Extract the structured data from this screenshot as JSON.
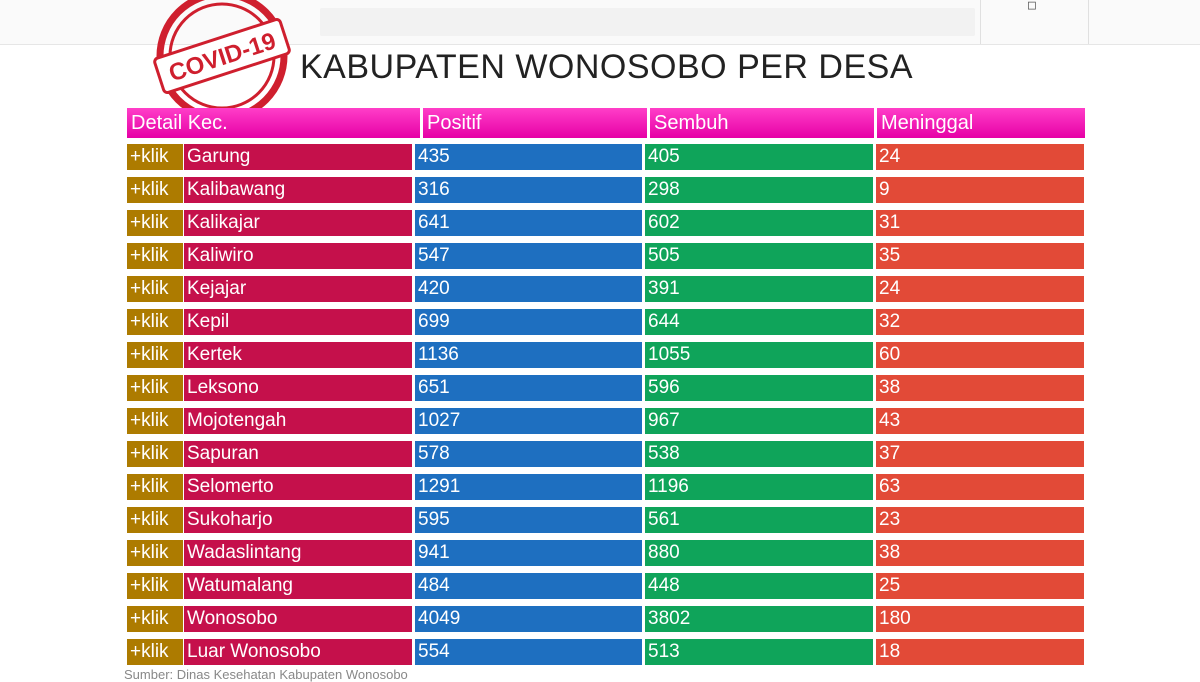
{
  "stamp": {
    "text": "COVID-19"
  },
  "page": {
    "title": "KABUPATEN WONOSOBO PER DESA"
  },
  "table": {
    "headers": [
      "Detail Kec.",
      "Positif",
      "Sembuh",
      "Meninggal"
    ],
    "link_label": "+klik",
    "rows": [
      {
        "name": "Garung",
        "positif": "435",
        "sembuh": "405",
        "meninggal": "24"
      },
      {
        "name": "Kalibawang",
        "positif": "316",
        "sembuh": "298",
        "meninggal": "9"
      },
      {
        "name": "Kalikajar",
        "positif": "641",
        "sembuh": "602",
        "meninggal": "31"
      },
      {
        "name": "Kaliwiro",
        "positif": "547",
        "sembuh": "505",
        "meninggal": "35"
      },
      {
        "name": "Kejajar",
        "positif": "420",
        "sembuh": "391",
        "meninggal": "24"
      },
      {
        "name": "Kepil",
        "positif": "699",
        "sembuh": "644",
        "meninggal": "32"
      },
      {
        "name": "Kertek",
        "positif": "1136",
        "sembuh": "1055",
        "meninggal": "60"
      },
      {
        "name": "Leksono",
        "positif": "651",
        "sembuh": "596",
        "meninggal": "38"
      },
      {
        "name": "Mojotengah",
        "positif": "1027",
        "sembuh": "967",
        "meninggal": "43"
      },
      {
        "name": "Sapuran",
        "positif": "578",
        "sembuh": "538",
        "meninggal": "37"
      },
      {
        "name": "Selomerto",
        "positif": "1291",
        "sembuh": "1196",
        "meninggal": "63"
      },
      {
        "name": "Sukoharjo",
        "positif": "595",
        "sembuh": "561",
        "meninggal": "23"
      },
      {
        "name": "Wadaslintang",
        "positif": "941",
        "sembuh": "880",
        "meninggal": "38"
      },
      {
        "name": "Watumalang",
        "positif": "484",
        "sembuh": "448",
        "meninggal": "25"
      },
      {
        "name": "Wonosobo",
        "positif": "4049",
        "sembuh": "3802",
        "meninggal": "180"
      },
      {
        "name": "Luar Wonosobo",
        "positif": "554",
        "sembuh": "513",
        "meninggal": "18"
      }
    ]
  },
  "footer": {
    "source": "Sumber: Dinas Kesehatan Kabupaten Wonosobo"
  },
  "colors": {
    "header": "#ff3ec8",
    "link": "#ad7b00",
    "district": "#c5104b",
    "positif": "#1e6fc0",
    "sembuh": "#0fa45a",
    "meninggal": "#e24a37"
  },
  "icons": {
    "menu": "menu-icon"
  }
}
